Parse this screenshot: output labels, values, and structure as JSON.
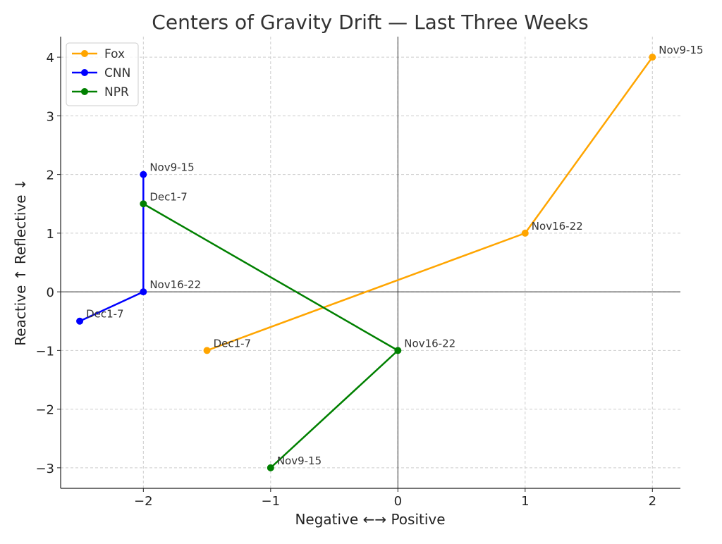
{
  "chart_data": {
    "type": "line",
    "title": "Centers of Gravity Drift — Last Three Weeks",
    "xlabel": "Negative ←→ Positive",
    "ylabel": "Reactive ↑   Reflective ↓",
    "xlim": [
      -2.65,
      2.22
    ],
    "ylim": [
      -3.35,
      4.35
    ],
    "xticks": [
      -2,
      -1,
      0,
      1,
      2
    ],
    "yticks": [
      -3,
      -2,
      -1,
      0,
      1,
      2,
      3,
      4
    ],
    "grid": true,
    "legend_position": "top-left",
    "series": [
      {
        "name": "Fox",
        "color": "#FFA500",
        "points": [
          {
            "x": 2,
            "y": 4,
            "label": "Nov9-15"
          },
          {
            "x": 1,
            "y": 1,
            "label": "Nov16-22"
          },
          {
            "x": -1.5,
            "y": -1,
            "label": "Dec1-7"
          }
        ]
      },
      {
        "name": "CNN",
        "color": "#0000FF",
        "points": [
          {
            "x": -2,
            "y": 2,
            "label": "Nov9-15"
          },
          {
            "x": -2,
            "y": 0,
            "label": "Nov16-22"
          },
          {
            "x": -2.5,
            "y": -0.5,
            "label": "Dec1-7"
          }
        ]
      },
      {
        "name": "NPR",
        "color": "#008000",
        "points": [
          {
            "x": -1,
            "y": -3,
            "label": "Nov9-15"
          },
          {
            "x": 0,
            "y": -1,
            "label": "Nov16-22"
          },
          {
            "x": -2,
            "y": 1.5,
            "label": "Dec1-7"
          }
        ]
      }
    ]
  }
}
